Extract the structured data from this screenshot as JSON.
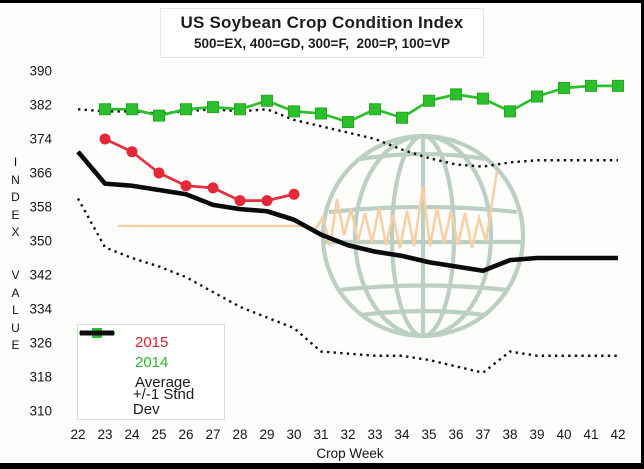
{
  "title_block": {
    "title": "US Soybean Crop Condition Index",
    "subtitle": "500=EX, 400=GD, 300=F,  200=P, 100=VP"
  },
  "axes": {
    "x_label": "Crop Week",
    "y_label_top": "INDEX",
    "y_label_bottom": "VALUE",
    "x_ticks": [
      22,
      23,
      24,
      25,
      26,
      27,
      28,
      29,
      30,
      31,
      32,
      33,
      34,
      35,
      36,
      37,
      38,
      39,
      40,
      41,
      42
    ],
    "y_ticks": [
      390,
      382,
      374,
      366,
      358,
      350,
      342,
      334,
      326,
      318,
      310
    ]
  },
  "legend": {
    "items": [
      {
        "label": "2015",
        "text_color": "#d8202e",
        "line_color": "#e62f3c",
        "marker": "circle"
      },
      {
        "label": "2014",
        "text_color": "#2db32d",
        "line_color": "#2cbf2c",
        "marker": "square"
      },
      {
        "label": "Average",
        "text_color": "#1b1b1b",
        "line_color": "#0b0b0b",
        "marker": "thick-line"
      },
      {
        "label": "+/-1 Stnd Dev",
        "text_color": "#1b1b1b",
        "line_color": "#111111",
        "marker": "dotted"
      }
    ]
  },
  "colors": {
    "red_series": "#e62f3c",
    "red_marker": "#e52837",
    "green_series": "#2cbf2c",
    "average": "#0b0b0b",
    "dotted": "#111111",
    "tick_text": "#161616",
    "watermark_globe": "#bccfc3",
    "watermark_zigzag": "#f6cfa4"
  },
  "chart_data": {
    "type": "line",
    "title": "US Soybean Crop Condition Index",
    "subtitle": "500=EX, 400=GD, 300=F,  200=P, 100=VP",
    "xlabel": "Crop Week",
    "ylabel": "INDEX VALUE",
    "xlim": [
      22,
      42
    ],
    "ylim": [
      310,
      390
    ],
    "grid": false,
    "legend_position": "lower-left",
    "series": [
      {
        "name": "+1 Stnd Dev",
        "style": "dotted",
        "color": "#111111",
        "x": [
          22,
          23,
          24,
          25,
          26,
          27,
          28,
          29,
          30,
          31,
          32,
          33,
          34,
          35,
          36,
          37,
          38,
          39,
          40,
          41,
          42
        ],
        "values": [
          381,
          380.5,
          380.5,
          380,
          380.5,
          381,
          380.5,
          381,
          378.5,
          377,
          375.5,
          374,
          371.5,
          369.5,
          368,
          367.5,
          368.5,
          369,
          369,
          369,
          369
        ]
      },
      {
        "name": "-1 Stnd Dev",
        "style": "dotted",
        "color": "#111111",
        "x": [
          22,
          23,
          24,
          25,
          26,
          27,
          28,
          29,
          30,
          31,
          32,
          33,
          34,
          35,
          36,
          37,
          38,
          39,
          40,
          41,
          42
        ],
        "values": [
          360,
          348.5,
          346,
          344,
          341.5,
          338,
          334.5,
          332,
          329.5,
          324,
          323.5,
          323,
          323,
          322,
          320.5,
          319,
          324,
          323,
          323,
          323,
          323
        ]
      },
      {
        "name": "Average",
        "style": "thick",
        "color": "#0b0b0b",
        "x": [
          22,
          23,
          24,
          25,
          26,
          27,
          28,
          29,
          30,
          31,
          32,
          33,
          34,
          35,
          36,
          37,
          38,
          39,
          40,
          41,
          42
        ],
        "values": [
          371,
          363.5,
          363,
          362,
          361,
          358.5,
          357.5,
          357,
          355,
          351.5,
          349,
          347.5,
          346.5,
          345,
          344,
          343,
          345.5,
          346,
          346,
          346,
          346
        ]
      },
      {
        "name": "2014",
        "style": "line",
        "marker": "square",
        "color": "#2cbf2c",
        "x": [
          23,
          24,
          25,
          26,
          27,
          28,
          29,
          30,
          31,
          32,
          33,
          34,
          35,
          36,
          37,
          38,
          39,
          40,
          41,
          42
        ],
        "values": [
          381,
          381,
          379.5,
          381,
          381.5,
          381,
          383,
          380.5,
          380,
          378,
          381,
          379,
          383,
          384.5,
          383.5,
          380.5,
          384,
          386,
          386.5,
          386.5
        ]
      },
      {
        "name": "2015",
        "style": "line",
        "marker": "circle",
        "color": "#e62f3c",
        "x": [
          23,
          24,
          25,
          26,
          27,
          28,
          29,
          30
        ],
        "values": [
          374,
          371,
          366,
          363,
          362.5,
          359.5,
          359.5,
          361
        ]
      }
    ]
  }
}
